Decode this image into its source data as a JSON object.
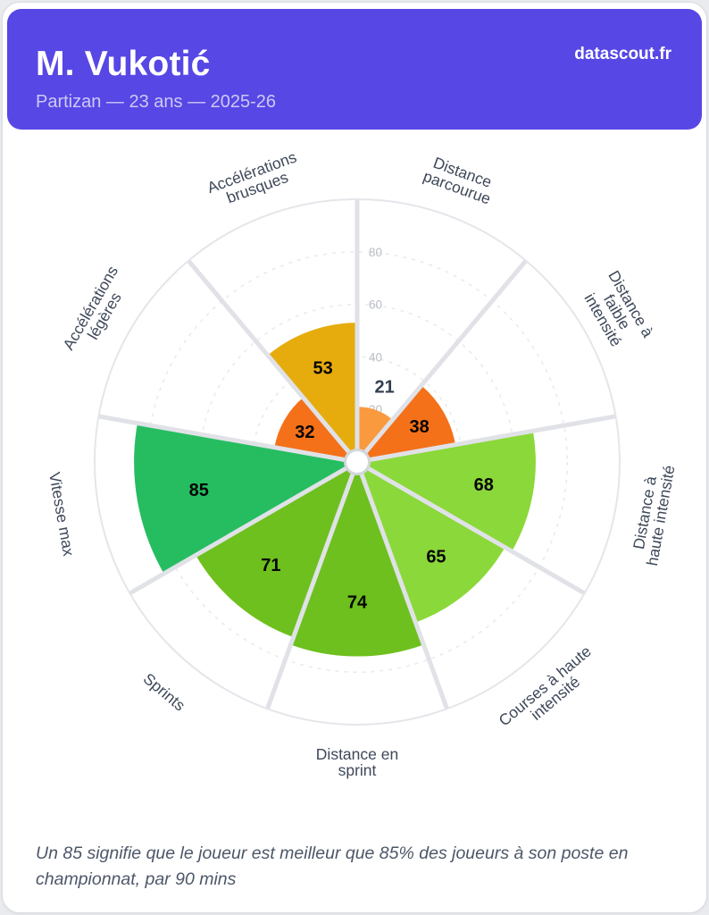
{
  "header": {
    "title": "M. Vukotić",
    "subtitle": "Partizan — 23 ans — 2025-26",
    "brand": "datascout.fr"
  },
  "footer": {
    "note": "Un 85 signifie que le joueur est meilleur que 85% des joueurs à son poste en championnat, par 90 mins"
  },
  "colors": {
    "header_bg": "#5747e5",
    "subtitle_text": "#cec9f5",
    "spoke": "#e0e2e7",
    "grid_dashed": "#e9ebee",
    "outer_ring": "#e4e6ea",
    "hub_fill": "#ffffff",
    "hub_stroke": "#d3d6db",
    "tick_text": "#b9bdc5",
    "param_text": "#3e4859",
    "value_text_inside": "#050505",
    "value_text_outside": "#333e50"
  },
  "chart_data": {
    "type": "pizza",
    "title": "",
    "scale": {
      "min": 0,
      "max": 100,
      "ticks": [
        20,
        40,
        60,
        80
      ]
    },
    "start_angle_deg": 0,
    "sector_span_deg": 40,
    "legend": "none",
    "grid": "dashed-circles",
    "params": [
      {
        "label": "Distance parcourue",
        "lines": [
          "Distance",
          "parcourue"
        ],
        "value": 21,
        "color": "#fa9a3e"
      },
      {
        "label": "Distance à faible intensité",
        "lines": [
          "Distance à",
          "faible",
          "intensité"
        ],
        "value": 38,
        "color": "#f4711a"
      },
      {
        "label": "Distance à haute intensité",
        "lines": [
          "Distance à",
          "haute intensité"
        ],
        "value": 68,
        "color": "#8bd83a"
      },
      {
        "label": "Courses à haute intensité",
        "lines": [
          "Courses à haute",
          "intensité"
        ],
        "value": 65,
        "color": "#8bd83a"
      },
      {
        "label": "Distance en sprint",
        "lines": [
          "Distance en",
          "sprint"
        ],
        "value": 74,
        "color": "#6ec01e"
      },
      {
        "label": "Sprints",
        "lines": [
          "Sprints"
        ],
        "value": 71,
        "color": "#6ec01e"
      },
      {
        "label": "Vitesse max",
        "lines": [
          "Vitesse max"
        ],
        "value": 85,
        "color": "#26bd61"
      },
      {
        "label": "Accélérations légères",
        "lines": [
          "Accélérations",
          "légères"
        ],
        "value": 32,
        "color": "#f4711a"
      },
      {
        "label": "Accélérations brusques",
        "lines": [
          "Accélérations",
          "brusques"
        ],
        "value": 53,
        "color": "#e6ac0e"
      }
    ]
  }
}
